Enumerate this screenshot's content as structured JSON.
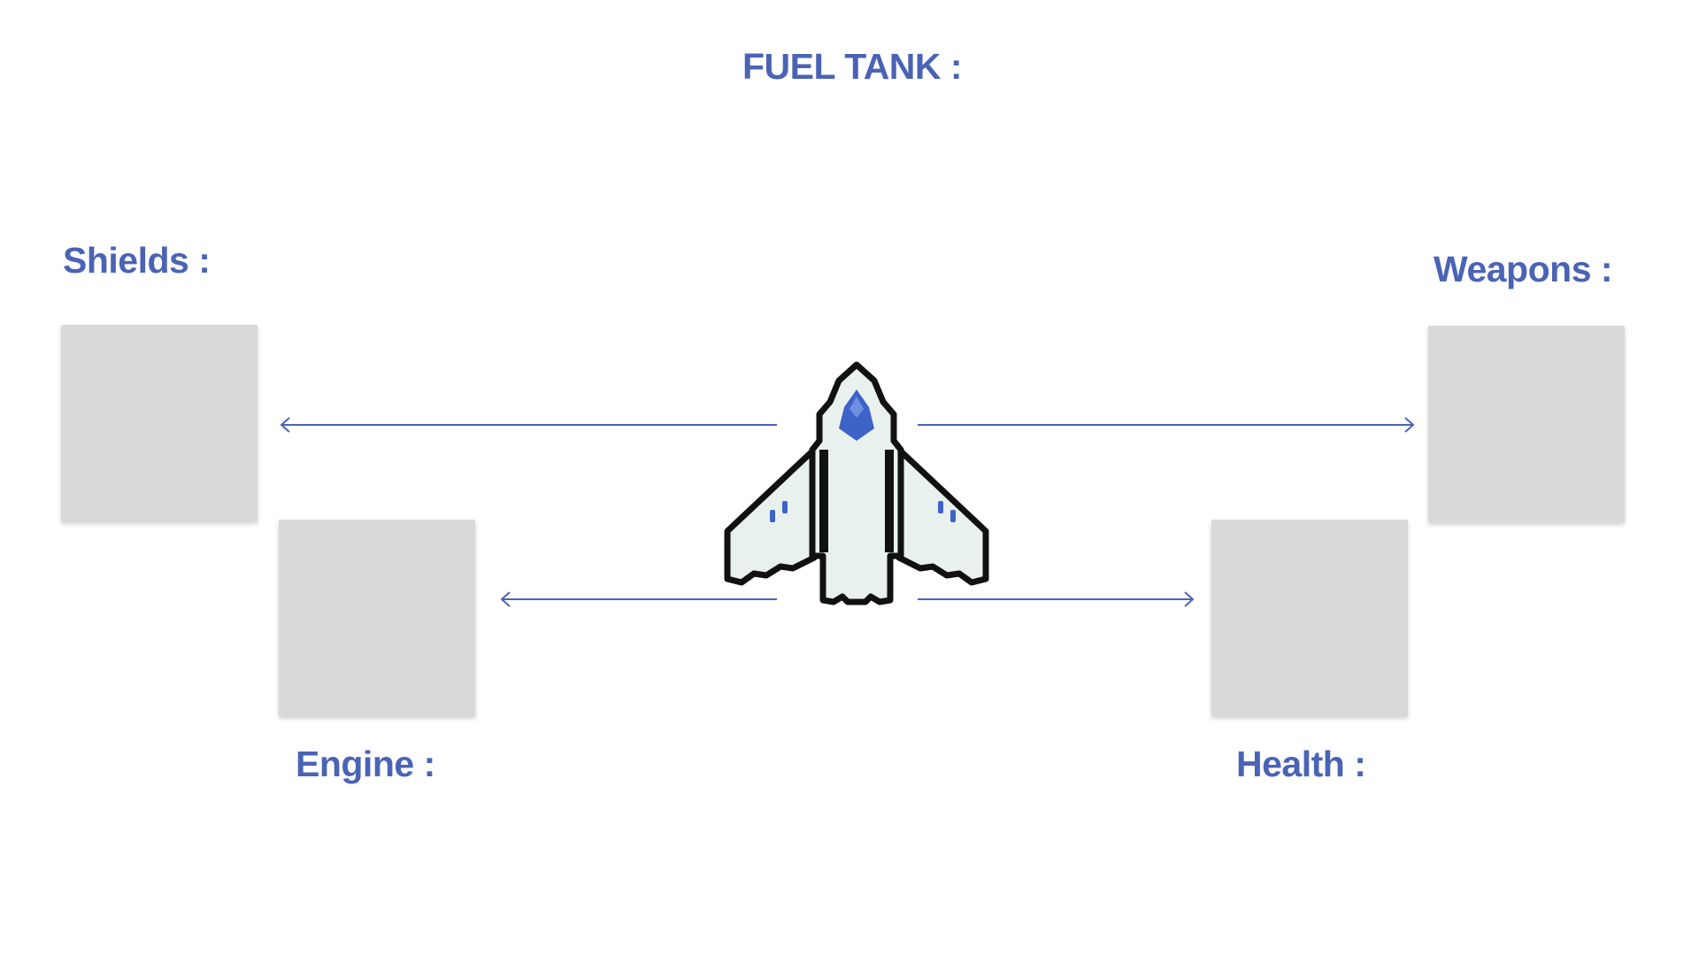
{
  "hud": {
    "fuel_label": "FUEL TANK :",
    "shields_label": "Shields :",
    "weapons_label": "Weapons :",
    "engine_label": "Engine :",
    "health_label": "Health :"
  },
  "colors": {
    "label_text": "#4a63b5",
    "connector_line": "#4a63b5",
    "slot_fill": "#d9d9d9",
    "ship_hull": "#e8f1ee",
    "ship_outline": "#111111",
    "ship_cockpit": "#3d63c9"
  },
  "icons": {
    "ship": "spaceship-icon",
    "connector_arrow": "arrow-icon"
  }
}
